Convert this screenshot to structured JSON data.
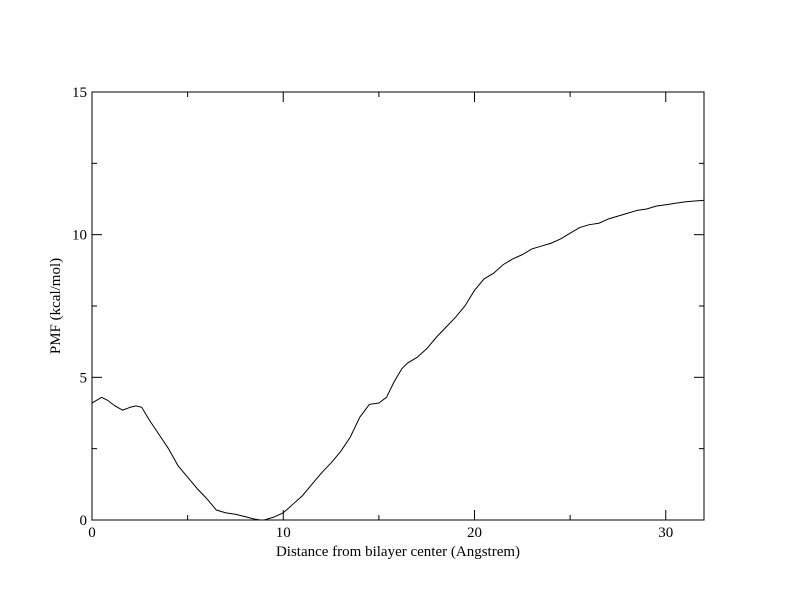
{
  "chart_data": {
    "type": "line",
    "title": "",
    "xlabel": "Distance from bilayer center (Angstrem)",
    "ylabel": "PMF (kcal/mol)",
    "xlim": [
      0,
      32
    ],
    "ylim": [
      0,
      15
    ],
    "x_major_ticks": [
      0,
      10,
      20,
      30
    ],
    "y_major_ticks": [
      0,
      5,
      10,
      15
    ],
    "x_tick_labels": [
      "0",
      "10",
      "20",
      "30"
    ],
    "y_tick_labels": [
      "0",
      "5",
      "10",
      "15"
    ],
    "x_minor_ticks": [
      5,
      15,
      25
    ],
    "y_minor_ticks": [
      2.5,
      7.5,
      12.5
    ],
    "grid": false,
    "legend": "none",
    "line_color": "#000000",
    "series": [
      {
        "x": [
          0,
          0.5,
          0.8,
          1.2,
          1.6,
          2.0,
          2.3,
          2.6,
          3.0,
          3.5,
          4.0,
          4.5,
          5.0,
          5.5,
          6.0,
          6.5,
          7.0,
          7.5,
          8.0,
          8.5,
          8.8,
          9.0,
          9.5,
          10.0,
          10.5,
          11.0,
          11.5,
          12.0,
          12.5,
          13.0,
          13.5,
          14.0,
          14.5,
          15.0,
          15.4,
          15.8,
          16.2,
          16.5,
          17.0,
          17.5,
          18.0,
          18.5,
          19.0,
          19.5,
          20.0,
          20.5,
          21.0,
          21.5,
          22.0,
          22.5,
          23.0,
          23.5,
          24.0,
          24.5,
          25.0,
          25.5,
          26.0,
          26.5,
          27.0,
          27.5,
          28.0,
          28.5,
          29.0,
          29.5,
          30.0,
          30.5,
          31.0,
          31.5,
          32.0
        ],
        "y": [
          4.1,
          4.3,
          4.2,
          4.0,
          3.85,
          3.95,
          4.0,
          3.95,
          3.5,
          3.0,
          2.5,
          1.9,
          1.5,
          1.1,
          0.75,
          0.35,
          0.25,
          0.2,
          0.12,
          0.03,
          0.0,
          0.0,
          0.1,
          0.25,
          0.55,
          0.85,
          1.25,
          1.65,
          2.0,
          2.4,
          2.9,
          3.6,
          4.05,
          4.1,
          4.3,
          4.85,
          5.3,
          5.5,
          5.7,
          6.0,
          6.4,
          6.75,
          7.1,
          7.5,
          8.05,
          8.45,
          8.65,
          8.95,
          9.15,
          9.3,
          9.5,
          9.6,
          9.7,
          9.85,
          10.05,
          10.25,
          10.35,
          10.4,
          10.55,
          10.65,
          10.75,
          10.85,
          10.9,
          11.0,
          11.05,
          11.1,
          11.15,
          11.18,
          11.2
        ]
      }
    ]
  }
}
